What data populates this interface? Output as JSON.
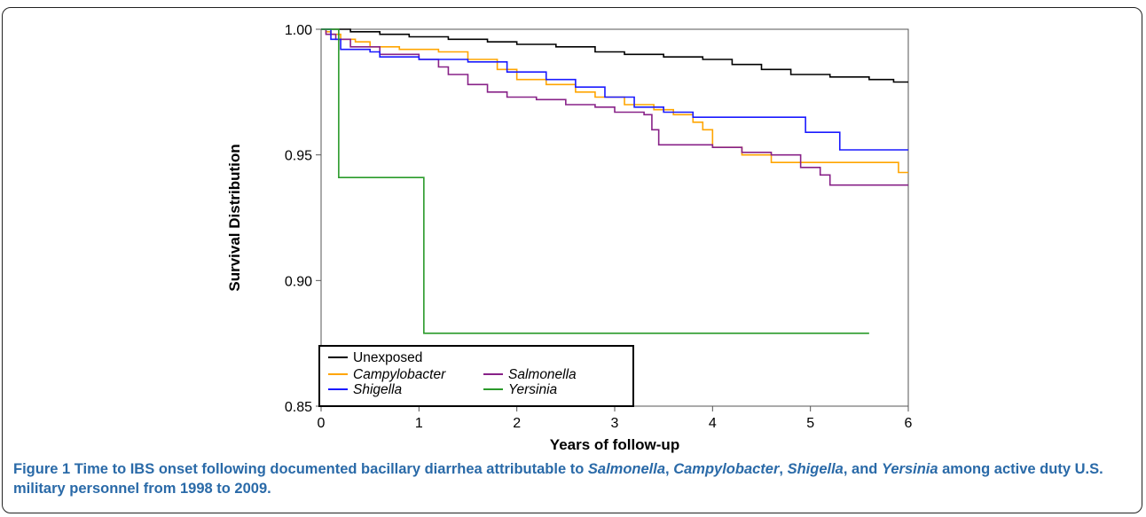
{
  "chart_data": {
    "type": "line",
    "xlabel": "Years of follow-up",
    "ylabel": "Survival Distribution",
    "xlim": [
      0,
      6
    ],
    "ylim": [
      0.85,
      1.0
    ],
    "x_ticks": [
      "0",
      "1",
      "2",
      "3",
      "4",
      "5",
      "6"
    ],
    "y_ticks": [
      "0.85",
      "0.90",
      "0.95",
      "1.00"
    ],
    "legend_position": "bottom-left",
    "series": [
      {
        "name": "Unexposed",
        "italic": false,
        "color": "#000000",
        "points": [
          [
            0,
            1.0
          ],
          [
            0.3,
            0.999
          ],
          [
            0.6,
            0.998
          ],
          [
            0.9,
            0.997
          ],
          [
            1.3,
            0.996
          ],
          [
            1.7,
            0.995
          ],
          [
            2.0,
            0.994
          ],
          [
            2.4,
            0.993
          ],
          [
            2.8,
            0.991
          ],
          [
            3.1,
            0.99
          ],
          [
            3.5,
            0.989
          ],
          [
            3.9,
            0.988
          ],
          [
            4.2,
            0.986
          ],
          [
            4.5,
            0.984
          ],
          [
            4.8,
            0.982
          ],
          [
            5.2,
            0.981
          ],
          [
            5.6,
            0.98
          ],
          [
            5.85,
            0.979
          ],
          [
            6.0,
            0.979
          ]
        ]
      },
      {
        "name": "Campylobacter",
        "italic": true,
        "color": "#ffa500",
        "points": [
          [
            0,
            1.0
          ],
          [
            0.05,
            0.999
          ],
          [
            0.1,
            0.998
          ],
          [
            0.2,
            0.996
          ],
          [
            0.35,
            0.995
          ],
          [
            0.5,
            0.993
          ],
          [
            0.8,
            0.992
          ],
          [
            1.2,
            0.991
          ],
          [
            1.5,
            0.988
          ],
          [
            1.8,
            0.984
          ],
          [
            2.0,
            0.98
          ],
          [
            2.3,
            0.978
          ],
          [
            2.6,
            0.975
          ],
          [
            2.8,
            0.973
          ],
          [
            3.1,
            0.97
          ],
          [
            3.4,
            0.968
          ],
          [
            3.6,
            0.966
          ],
          [
            3.8,
            0.963
          ],
          [
            3.9,
            0.96
          ],
          [
            4.0,
            0.953
          ],
          [
            4.3,
            0.95
          ],
          [
            4.6,
            0.947
          ],
          [
            5.0,
            0.947
          ],
          [
            5.3,
            0.947
          ],
          [
            5.9,
            0.943
          ],
          [
            6.0,
            0.943
          ]
        ]
      },
      {
        "name": "Salmonella",
        "italic": true,
        "color": "#882288",
        "points": [
          [
            0,
            1.0
          ],
          [
            0.05,
            0.998
          ],
          [
            0.15,
            0.996
          ],
          [
            0.3,
            0.993
          ],
          [
            0.6,
            0.99
          ],
          [
            1.0,
            0.988
          ],
          [
            1.2,
            0.985
          ],
          [
            1.3,
            0.982
          ],
          [
            1.5,
            0.978
          ],
          [
            1.7,
            0.975
          ],
          [
            1.9,
            0.973
          ],
          [
            2.2,
            0.972
          ],
          [
            2.5,
            0.97
          ],
          [
            2.8,
            0.969
          ],
          [
            3.0,
            0.967
          ],
          [
            3.3,
            0.966
          ],
          [
            3.38,
            0.96
          ],
          [
            3.45,
            0.954
          ],
          [
            3.7,
            0.954
          ],
          [
            4.0,
            0.953
          ],
          [
            4.3,
            0.951
          ],
          [
            4.6,
            0.95
          ],
          [
            4.9,
            0.945
          ],
          [
            5.1,
            0.942
          ],
          [
            5.2,
            0.938
          ],
          [
            6.0,
            0.938
          ]
        ]
      },
      {
        "name": "Shigella",
        "italic": true,
        "color": "#1a1aff",
        "points": [
          [
            0,
            1.0
          ],
          [
            0.1,
            0.996
          ],
          [
            0.2,
            0.992
          ],
          [
            0.5,
            0.991
          ],
          [
            0.6,
            0.989
          ],
          [
            1.0,
            0.988
          ],
          [
            1.5,
            0.987
          ],
          [
            1.9,
            0.983
          ],
          [
            2.3,
            0.98
          ],
          [
            2.6,
            0.977
          ],
          [
            2.9,
            0.973
          ],
          [
            3.2,
            0.969
          ],
          [
            3.5,
            0.967
          ],
          [
            3.8,
            0.965
          ],
          [
            4.3,
            0.965
          ],
          [
            4.9,
            0.965
          ],
          [
            4.95,
            0.959
          ],
          [
            5.3,
            0.952
          ],
          [
            6.0,
            0.952
          ]
        ]
      },
      {
        "name": "Yersinia",
        "italic": true,
        "color": "#2a9a2a",
        "points": [
          [
            0,
            1.0
          ],
          [
            0.18,
            1.0
          ],
          [
            0.18,
            0.941
          ],
          [
            1.05,
            0.941
          ],
          [
            1.05,
            0.879
          ],
          [
            5.6,
            0.879
          ]
        ]
      }
    ]
  },
  "caption": {
    "label": "Figure 1",
    "segments": [
      {
        "text": " Time to IBS onset following documented bacillary diarrhea attributable to ",
        "italic": false
      },
      {
        "text": "Salmonella",
        "italic": true
      },
      {
        "text": ", ",
        "italic": false
      },
      {
        "text": "Campylobacter",
        "italic": true
      },
      {
        "text": ", ",
        "italic": false
      },
      {
        "text": "Shigella",
        "italic": true
      },
      {
        "text": ", and ",
        "italic": false
      },
      {
        "text": "Yersinia",
        "italic": true
      },
      {
        "text": " among active duty U.S. military personnel from 1998 to 2009.",
        "italic": false
      }
    ]
  }
}
